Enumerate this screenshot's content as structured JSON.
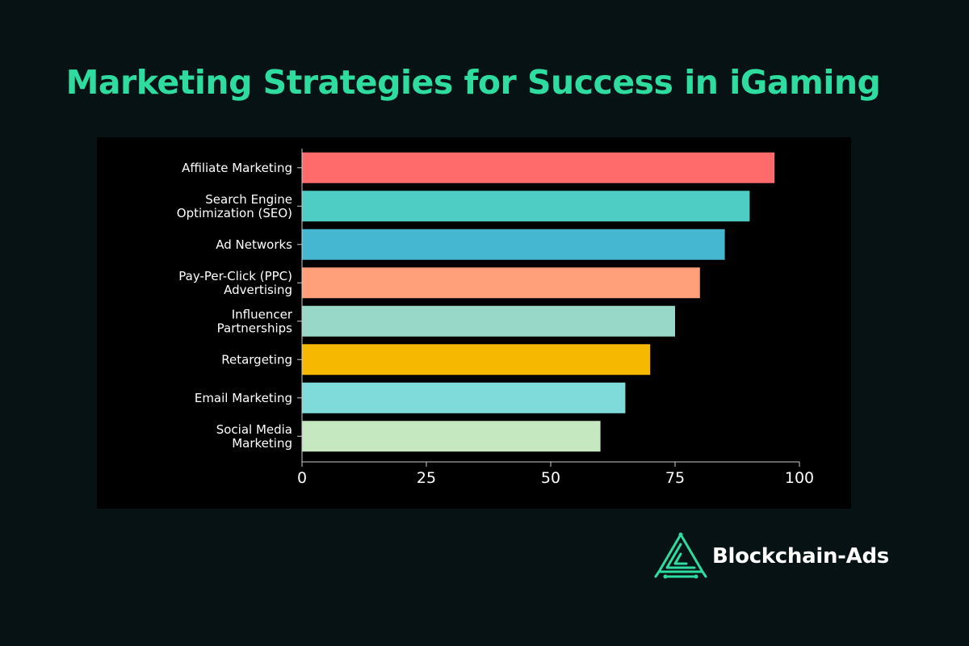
{
  "page": {
    "title": "Marketing Strategies for Success in iGaming",
    "title_color": "#2edc9f",
    "background": "#061214"
  },
  "chart_data": {
    "type": "bar",
    "orientation": "horizontal",
    "categories": [
      "Affiliate Marketing",
      "Search Engine Optimization (SEO)",
      "Ad Networks",
      "Pay-Per-Click (PPC) Advertising",
      "Influencer Partnerships",
      "Retargeting",
      "Email Marketing",
      "Social Media Marketing"
    ],
    "category_lines": [
      [
        "Affiliate Marketing"
      ],
      [
        "Search Engine",
        "Optimization (SEO)"
      ],
      [
        "Ad Networks"
      ],
      [
        "Pay-Per-Click (PPC)",
        "Advertising"
      ],
      [
        "Influencer",
        "Partnerships"
      ],
      [
        "Retargeting"
      ],
      [
        "Email Marketing"
      ],
      [
        "Social Media",
        "Marketing"
      ]
    ],
    "values": [
      95,
      90,
      85,
      80,
      75,
      70,
      65,
      60
    ],
    "colors": [
      "#ff6b6b",
      "#4ecdc4",
      "#45b7d1",
      "#ffa07a",
      "#98d8c8",
      "#f7b801",
      "#7fdbda",
      "#c5e8c0"
    ],
    "xlim": [
      0,
      100
    ],
    "xticks": [
      0,
      25,
      50,
      75,
      100
    ],
    "xlabel": "",
    "ylabel": "",
    "grid": false,
    "legend": false
  },
  "brand": {
    "name": "Blockchain-Ads",
    "logo_icon": "blockchain-ads-logo-icon",
    "accent": "#2edc9f"
  }
}
